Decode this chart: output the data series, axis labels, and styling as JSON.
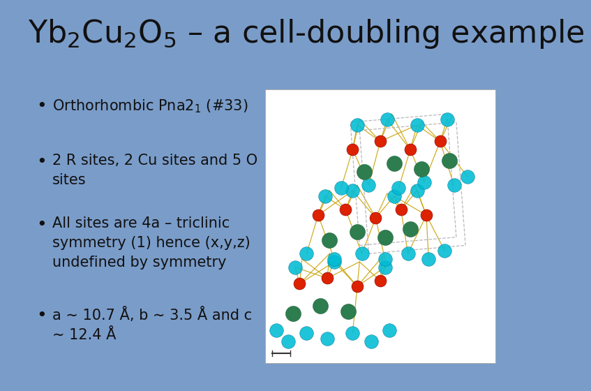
{
  "background_color": "#7a9cc9",
  "title": "Yb$_2$Cu$_2$O$_5$ – a cell-doubling example",
  "title_fontsize": 32,
  "title_color": "#111111",
  "bullet_points": [
    "Orthorhombic Pna2$_1$ (#33)",
    "2 R sites, 2 Cu sites and 5 O\nsites",
    "All sites are 4a – triclinic\nsymmetry (1) hence (x,y,z)\nundefined by symmetry",
    "a ∼ 10.7 Å, b ∼ 3.5 Å and c\n∼ 12.4 Å"
  ],
  "bullet_fontsize": 15,
  "bullet_color": "#111111",
  "atom_colors": {
    "Yb": "#2e7d4f",
    "Cu": "#dd2200",
    "O_cyan": "#00bcd4"
  },
  "bond_color": "#c8a000"
}
